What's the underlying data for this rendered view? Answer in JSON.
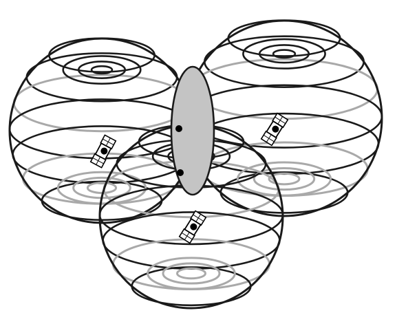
{
  "colors": {
    "background": "#ffffff",
    "dark_ring": "#1a1a1a",
    "light_ring": "#a9a9a9",
    "intersection_fill": "#c4c4c4",
    "point": "#000000"
  },
  "diagram": {
    "spheres": [
      {
        "name": "left-sphere"
      },
      {
        "name": "right-sphere"
      },
      {
        "name": "bottom-sphere"
      }
    ],
    "satellites": [
      {
        "name": "satellite-left-icon"
      },
      {
        "name": "satellite-right-icon"
      },
      {
        "name": "satellite-bottom-icon"
      }
    ],
    "intersection": {
      "name": "intersection-ellipse"
    },
    "points": [
      {
        "name": "intersection-point-upper"
      },
      {
        "name": "intersection-point-lower"
      }
    ]
  }
}
